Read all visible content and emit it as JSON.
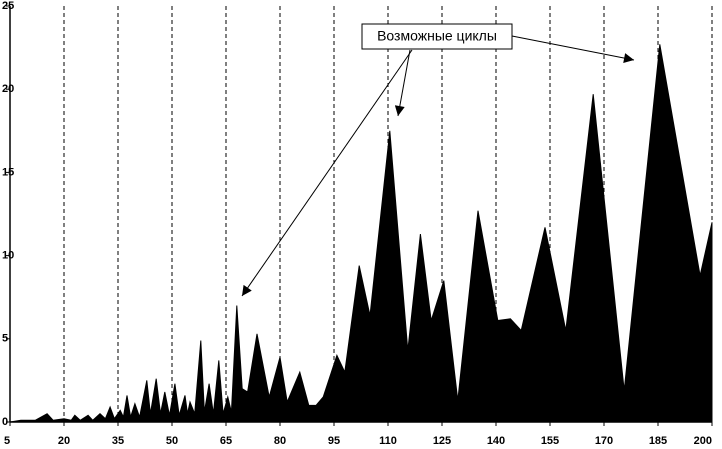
{
  "chart_data": {
    "type": "area",
    "annotation": "Возможные циклы",
    "color": "#000000",
    "grid": true,
    "x": [
      5,
      8,
      12,
      15.3,
      17,
      20,
      22,
      23,
      24.5,
      26.7,
      28,
      30,
      31.5,
      32.8,
      34,
      35.6,
      36.5,
      37.5,
      38.5,
      39.7,
      41,
      43,
      44,
      45.6,
      46.8,
      48,
      49.3,
      50.8,
      52,
      53.6,
      54.3,
      55,
      56.3,
      58,
      59,
      60.3,
      61.5,
      63,
      64.2,
      65.5,
      66.5,
      68,
      69.5,
      71,
      73.6,
      77,
      80,
      82,
      85.5,
      88,
      90,
      92,
      95.8,
      98,
      102,
      105,
      110.5,
      115.5,
      119,
      122,
      125.5,
      129.4,
      135,
      140.5,
      144,
      147,
      153.6,
      159.4,
      167,
      175.6,
      185.5,
      196.7,
      200
    ],
    "values": [
      0,
      0.1,
      0.1,
      0.5,
      0.1,
      0.2,
      0.1,
      0.4,
      0.1,
      0.4,
      0.1,
      0.5,
      0.2,
      0.9,
      0.2,
      0.7,
      0.3,
      1.6,
      0.3,
      1.1,
      0.3,
      2.5,
      0.5,
      2.6,
      0.5,
      1.8,
      0.4,
      2.3,
      0.4,
      1.6,
      0.5,
      1.2,
      0.5,
      4.9,
      0.6,
      2.3,
      0.5,
      3.7,
      0.5,
      1.5,
      0.6,
      7.0,
      2.0,
      1.8,
      5.3,
      1.5,
      3.9,
      1.2,
      3.0,
      1.0,
      1.0,
      1.5,
      4.0,
      3.0,
      9.4,
      6.4,
      17.5,
      4.3,
      11.3,
      6.1,
      8.5,
      1.3,
      12.7,
      6.1,
      6.2,
      5.5,
      11.7,
      5.5,
      19.7,
      1.9,
      22.7,
      8.8,
      12.0
    ],
    "xlim": [
      5,
      200
    ],
    "xticks": [
      5,
      20,
      35,
      50,
      65,
      80,
      95,
      110,
      125,
      140,
      155,
      170,
      185,
      200
    ],
    "ylim": [
      0,
      25
    ],
    "yticks": [
      0,
      5,
      10,
      15,
      20,
      25
    ]
  }
}
